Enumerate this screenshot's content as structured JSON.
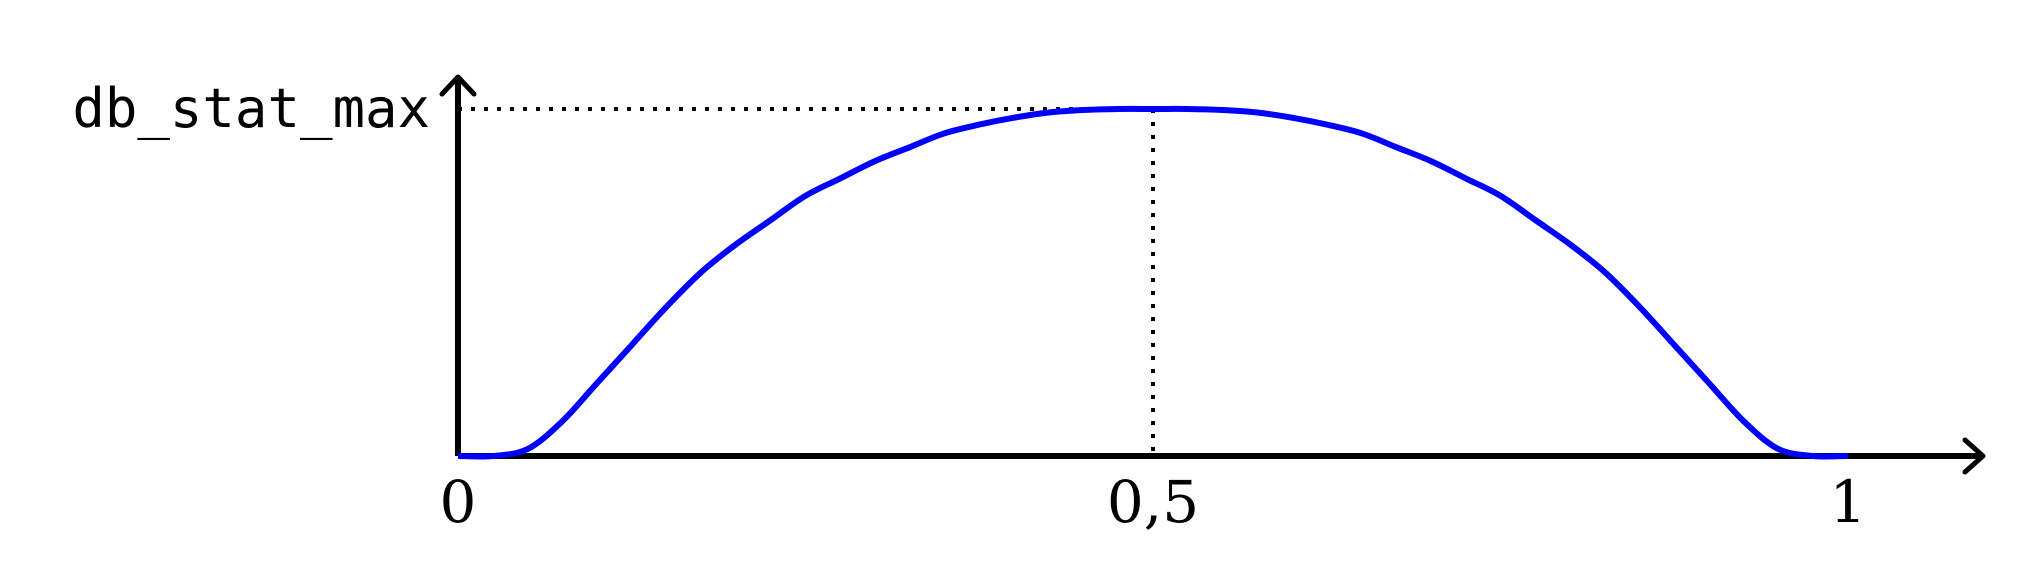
{
  "chart_data": {
    "type": "line",
    "title": "",
    "xlabel": "",
    "ylabel": "",
    "xlim": [
      0,
      1
    ],
    "ylim": [
      0,
      1
    ],
    "x_ticks": [
      "0",
      "0,5",
      "1"
    ],
    "y_ticks": [
      "db_stat_max"
    ],
    "grid": false,
    "legend": "none",
    "series": [
      {
        "color": "#0000ff",
        "x": [
          0,
          0.025,
          0.05,
          0.075,
          0.1,
          0.125,
          0.15,
          0.175,
          0.2,
          0.225,
          0.25,
          0.275,
          0.3,
          0.325,
          0.35,
          0.375,
          0.4,
          0.425,
          0.45,
          0.475,
          0.5,
          0.525,
          0.55,
          0.575,
          0.6,
          0.625,
          0.65,
          0.675,
          0.7,
          0.725,
          0.75,
          0.775,
          0.8,
          0.825,
          0.85,
          0.875,
          0.9,
          0.925,
          0.95,
          0.975,
          1
        ],
        "y": [
          0,
          0,
          0.02,
          0.1,
          0.21,
          0.32,
          0.43,
          0.53,
          0.61,
          0.68,
          0.75,
          0.8,
          0.85,
          0.89,
          0.93,
          0.955,
          0.975,
          0.99,
          0.997,
          1,
          1,
          1,
          0.997,
          0.99,
          0.975,
          0.955,
          0.93,
          0.89,
          0.85,
          0.8,
          0.75,
          0.68,
          0.61,
          0.53,
          0.43,
          0.32,
          0.21,
          0.1,
          0.02,
          0,
          0
        ]
      }
    ],
    "reference_lines": [
      {
        "style": "dotted",
        "color": "#000000",
        "x": 0.5,
        "y": 1
      }
    ],
    "axis_color": "#000000"
  }
}
